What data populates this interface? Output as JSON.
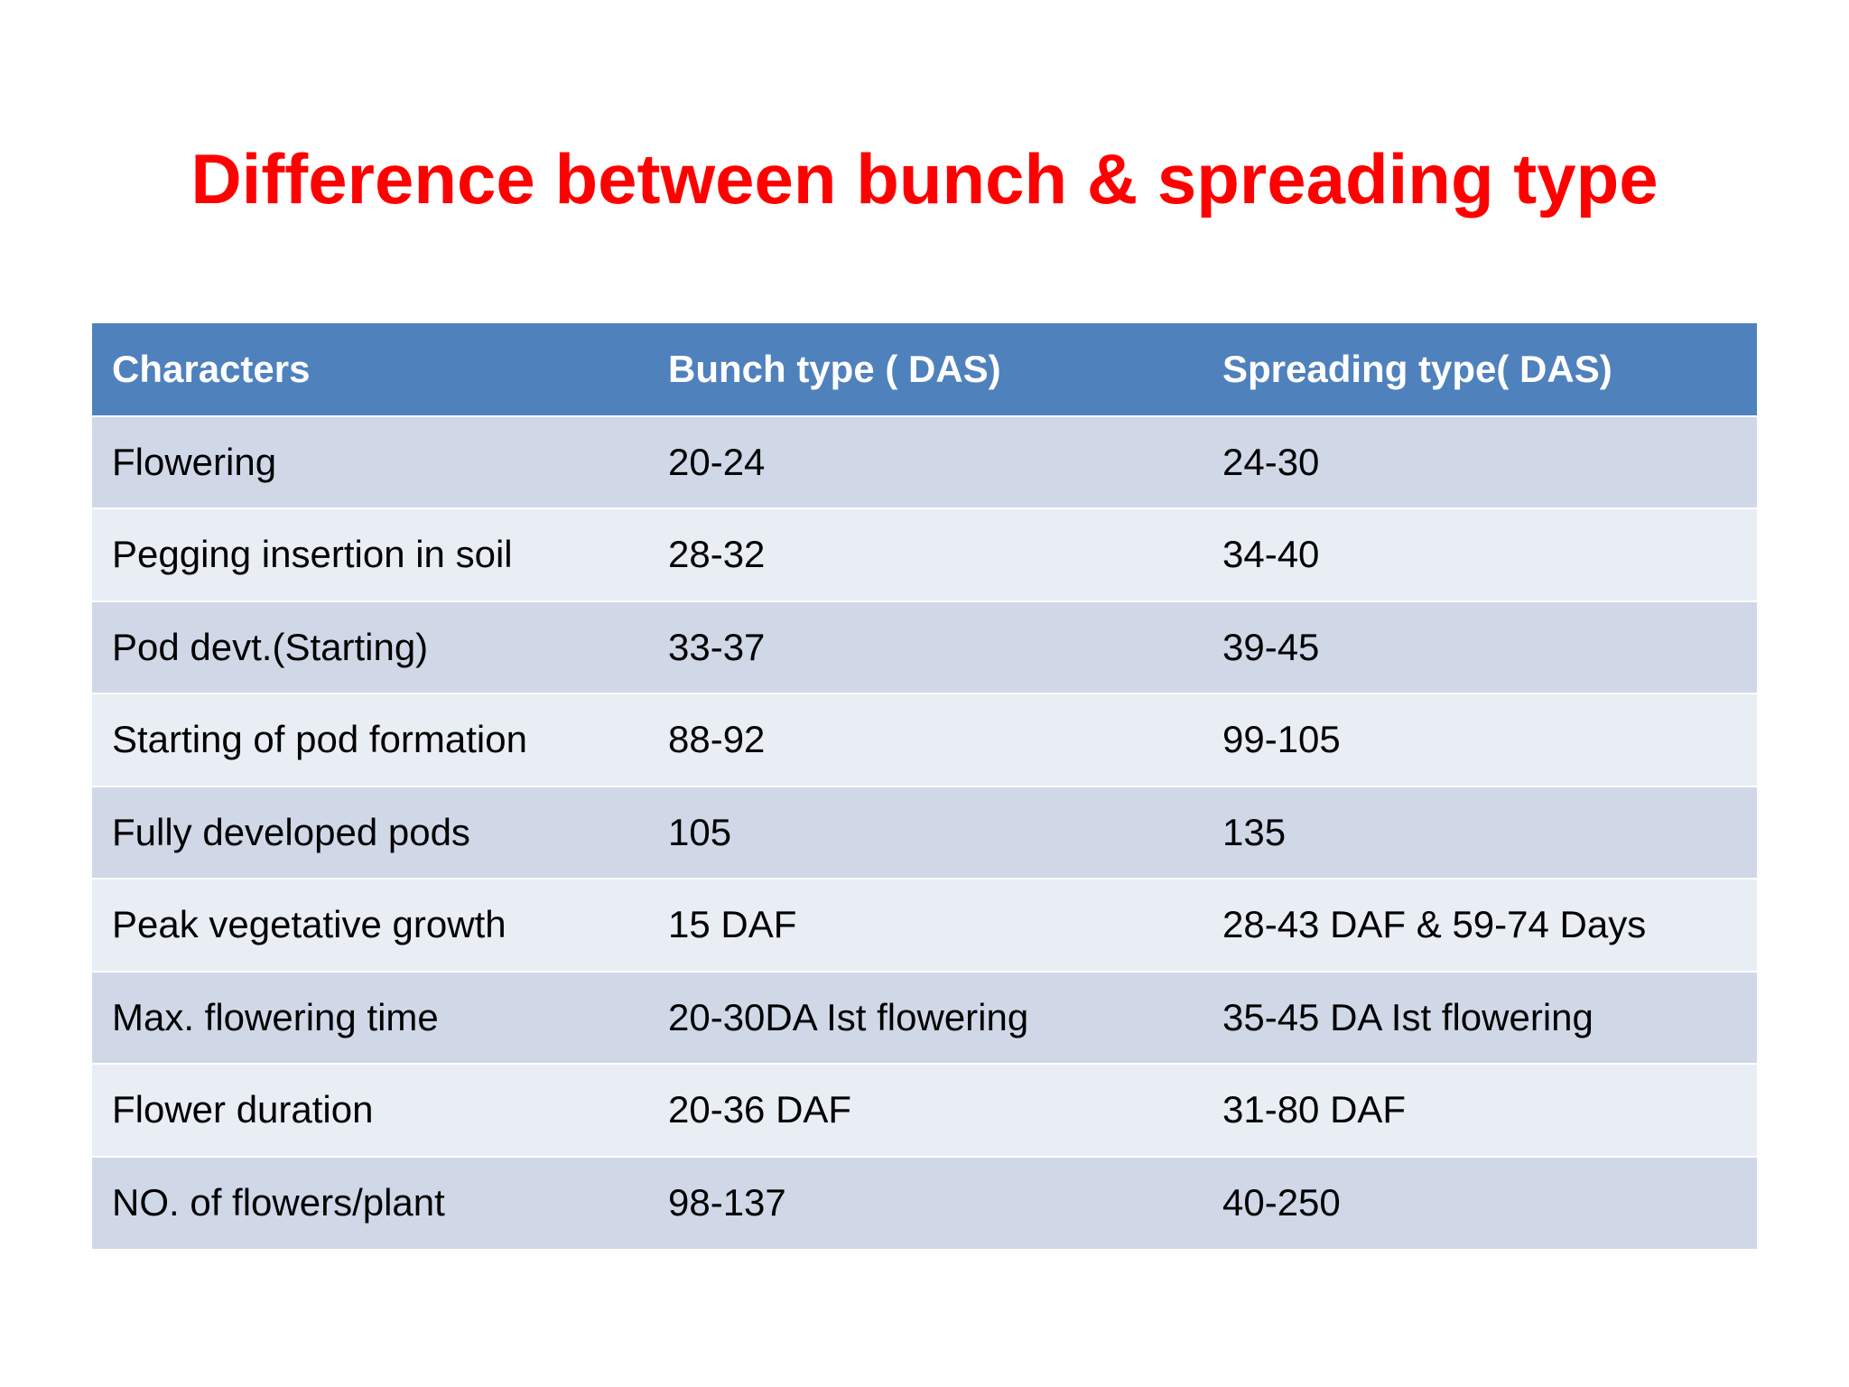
{
  "slide": {
    "title": "Difference between bunch & spreading type"
  },
  "table": {
    "headers": [
      "Characters",
      "Bunch type ( DAS)",
      "Spreading type( DAS)"
    ],
    "rows": [
      [
        "Flowering",
        "20-24",
        "24-30"
      ],
      [
        "Pegging insertion in soil",
        "28-32",
        "34-40"
      ],
      [
        "Pod devt.(Starting)",
        "33-37",
        "39-45"
      ],
      [
        "Starting of pod formation",
        "88-92",
        "99-105"
      ],
      [
        "Fully developed pods",
        "105",
        "135"
      ],
      [
        "Peak vegetative growth",
        "15 DAF",
        "28-43 DAF & 59-74 Days"
      ],
      [
        "Max. flowering time",
        "20-30DA Ist flowering",
        "35-45 DA Ist flowering"
      ],
      [
        "Flower duration",
        "20-36 DAF",
        "31-80 DAF"
      ],
      [
        "NO. of flowers/plant",
        "98-137",
        "40-250"
      ]
    ],
    "colors": {
      "header_bg": "#4f81bd",
      "row_band_dark": "#d0d8e8",
      "row_band_light": "#e9edf4",
      "title_color": "#ff0000"
    }
  }
}
